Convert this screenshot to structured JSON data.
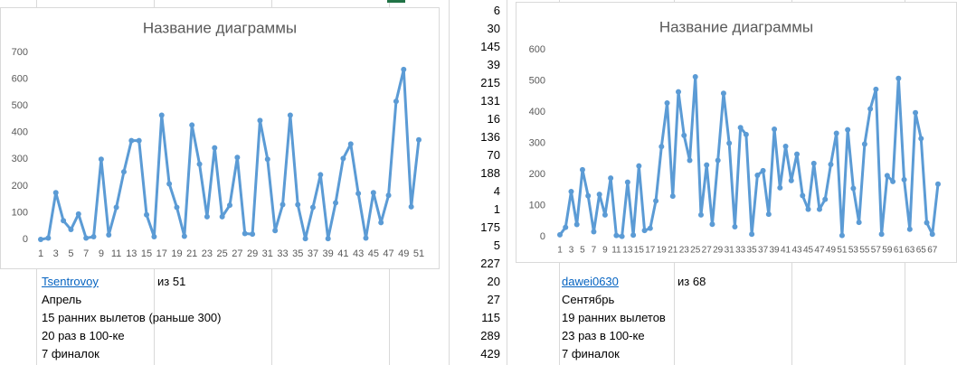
{
  "chart_data": [
    {
      "type": "line",
      "title": "Название диаграммы",
      "categories": [
        1,
        null,
        3,
        null,
        5,
        null,
        7,
        null,
        9,
        null,
        11,
        null,
        13,
        null,
        15,
        null,
        17,
        null,
        19,
        null,
        21,
        null,
        23,
        null,
        25,
        null,
        27,
        null,
        29,
        null,
        31,
        null,
        33,
        null,
        35,
        null,
        37,
        null,
        39,
        null,
        41,
        null,
        43,
        null,
        45,
        null,
        47,
        null,
        49,
        null,
        51
      ],
      "series": [
        {
          "color": "#5b9bd5",
          "values": [
            0,
            5,
            175,
            70,
            37,
            95,
            5,
            10,
            300,
            17,
            120,
            253,
            370,
            370,
            92,
            10,
            465,
            208,
            120,
            12,
            428,
            282,
            85,
            343,
            85,
            128,
            307,
            22,
            20,
            445,
            300,
            33,
            130,
            465,
            130,
            3,
            120,
            242,
            3,
            137,
            303,
            357,
            172,
            5,
            175,
            63,
            165,
            517,
            636,
            122,
            373
          ]
        }
      ],
      "ylim": [
        0,
        700
      ],
      "yticks": [
        0,
        100,
        200,
        300,
        400,
        500,
        600,
        700
      ],
      "grid": false
    },
    {
      "type": "line",
      "title": "Название диаграммы",
      "categories": [
        1,
        null,
        3,
        null,
        5,
        null,
        7,
        null,
        9,
        null,
        11,
        null,
        13,
        null,
        15,
        null,
        17,
        null,
        19,
        null,
        21,
        null,
        23,
        null,
        25,
        null,
        27,
        null,
        29,
        null,
        31,
        null,
        33,
        null,
        35,
        null,
        37,
        null,
        39,
        null,
        41,
        null,
        43,
        null,
        45,
        null,
        47,
        null,
        49,
        null,
        51,
        null,
        53,
        null,
        55,
        null,
        57,
        null,
        59,
        null,
        61,
        null,
        63,
        null,
        65,
        null,
        67,
        null
      ],
      "series": [
        {
          "color": "#5b9bd5",
          "values": [
            6,
            30,
            145,
            39,
            215,
            131,
            16,
            136,
            70,
            188,
            4,
            1,
            175,
            5,
            227,
            20,
            27,
            115,
            289,
            429,
            130,
            465,
            325,
            245,
            513,
            70,
            230,
            40,
            245,
            460,
            300,
            32,
            350,
            328,
            8,
            197,
            212,
            72,
            345,
            157,
            290,
            180,
            265,
            132,
            88,
            235,
            88,
            120,
            232,
            332,
            4,
            343,
            155,
            46,
            297,
            410,
            473,
            8,
            196,
            177,
            508,
            183,
            24,
            398,
            315,
            45,
            8,
            169
          ]
        }
      ],
      "ylim": [
        0,
        600
      ],
      "yticks": [
        0,
        100,
        200,
        300,
        400,
        500,
        600
      ],
      "grid": false
    }
  ],
  "sheet": {
    "column": [
      6,
      30,
      145,
      39,
      215,
      131,
      16,
      136,
      70,
      188,
      4,
      1,
      175,
      5,
      227,
      20,
      27,
      115,
      289,
      429
    ],
    "left": {
      "user": "Tsentrovoy",
      "count": "из 51",
      "month": "Апрель",
      "lines": [
        "15 ранних вылетов (раньше 300)",
        "20 раз в 100-ке",
        "7 финалок"
      ]
    },
    "right": {
      "user": "dawei0630",
      "count": "из 68",
      "month": "Сентябрь",
      "lines": [
        "19 ранних вылетов",
        "23 раз в 100-ке",
        "7 финалок"
      ]
    }
  }
}
